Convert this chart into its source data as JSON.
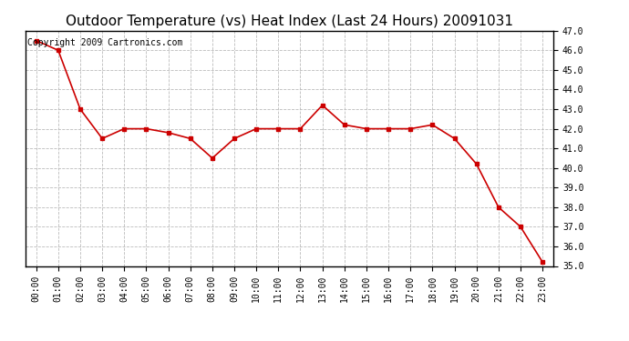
{
  "title": "Outdoor Temperature (vs) Heat Index (Last 24 Hours) 20091031",
  "copyright_text": "Copyright 2009 Cartronics.com",
  "x_labels": [
    "00:00",
    "01:00",
    "02:00",
    "03:00",
    "04:00",
    "05:00",
    "06:00",
    "07:00",
    "08:00",
    "09:00",
    "10:00",
    "11:00",
    "12:00",
    "13:00",
    "14:00",
    "15:00",
    "16:00",
    "17:00",
    "18:00",
    "19:00",
    "20:00",
    "21:00",
    "22:00",
    "23:00"
  ],
  "y_values": [
    46.5,
    46.0,
    43.0,
    41.5,
    42.0,
    42.0,
    41.8,
    41.5,
    40.5,
    41.5,
    42.0,
    42.0,
    42.0,
    43.2,
    42.2,
    42.0,
    42.0,
    42.0,
    42.2,
    41.5,
    40.2,
    38.0,
    37.0,
    35.2
  ],
  "line_color": "#cc0000",
  "marker": "s",
  "marker_size": 3,
  "ylim_min": 35.0,
  "ylim_max": 47.0,
  "ytick_step": 1.0,
  "background_color": "#ffffff",
  "plot_bg_color": "#ffffff",
  "grid_color": "#bbbbbb",
  "grid_linestyle": "--",
  "title_fontsize": 11,
  "copyright_fontsize": 7,
  "tick_fontsize": 7,
  "border_color": "#000000",
  "linewidth": 1.2
}
